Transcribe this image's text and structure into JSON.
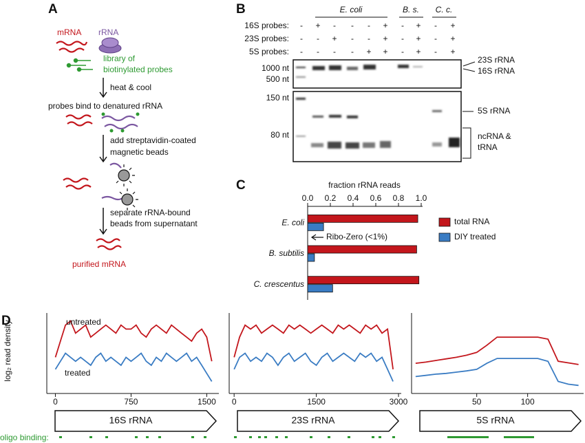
{
  "panel_labels": [
    "A",
    "B",
    "C",
    "D"
  ],
  "panel_a": {
    "mrna": "mRNA",
    "rrna": "rRNA",
    "probes": [
      "library of",
      "biotinylated probes"
    ],
    "steps": [
      "heat & cool",
      "probes bind to denatured rRNA",
      "add streptavidin-coated",
      "magnetic beads",
      "separate rRNA-bound",
      "beads from supernatant"
    ],
    "result": "purified mRNA"
  },
  "panel_b": {
    "species": [
      "E. coli",
      "B. s.",
      "C. c."
    ],
    "rows": [
      {
        "label": "16S probes:",
        "signs": [
          "-",
          "+",
          "-",
          "-",
          "-",
          "+",
          "-",
          "+",
          "-",
          "+"
        ]
      },
      {
        "label": "23S probes:",
        "signs": [
          "-",
          "-",
          "+",
          "-",
          "-",
          "+",
          "-",
          "+",
          "-",
          "+"
        ]
      },
      {
        "label": "5S probes:",
        "signs": [
          "-",
          "-",
          "-",
          "-",
          "+",
          "+",
          "-",
          "+",
          "-",
          "+"
        ]
      }
    ],
    "ladder": [
      "1000 nt",
      "500 nt",
      "150 nt",
      "80 nt"
    ],
    "bands": [
      "23S rRNA",
      "16S rRNA",
      "5S rRNA",
      "ncRNA &",
      "tRNA"
    ]
  },
  "oligo_label": "oligo binding:",
  "chart_data": [
    {
      "type": "hbar",
      "title": "fraction rRNA reads",
      "categories": [
        "E. coli",
        "B. subtilis",
        "C. crescentus"
      ],
      "series": [
        {
          "name": "total RNA",
          "color": "#c3161c",
          "values": [
            0.97,
            0.96,
            0.98
          ]
        },
        {
          "name": "DIY treated",
          "color": "#3a7cc3",
          "values": [
            0.14,
            0.06,
            0.22
          ]
        }
      ],
      "xlim": [
        0,
        1
      ],
      "xticks": [
        {
          "value": 0,
          "label": "0.0"
        },
        0.2,
        0.4,
        0.6,
        0.8,
        {
          "value": 1,
          "label": "1.0"
        }
      ],
      "annotation": "Ribo-Zero (<1%)",
      "legend": "right"
    },
    {
      "type": "line",
      "ylabel": "log₂ read density",
      "gene": "16S rRNA",
      "annotations": [
        "untreated",
        "treated"
      ],
      "x": [
        0,
        50,
        100,
        150,
        200,
        250,
        300,
        350,
        400,
        450,
        500,
        550,
        600,
        650,
        700,
        750,
        800,
        850,
        900,
        950,
        1000,
        1050,
        1100,
        1150,
        1200,
        1250,
        1300,
        1350,
        1400,
        1450,
        1500,
        1550
      ],
      "series": [
        {
          "name": "untreated",
          "color": "#c3161c",
          "values": [
            9,
            13,
            17,
            18,
            15,
            16,
            17,
            14,
            15,
            16,
            17,
            16,
            15,
            17,
            16,
            16,
            17,
            15,
            14,
            16,
            17,
            16,
            15,
            17,
            16,
            15,
            14,
            13,
            15,
            16,
            14,
            8
          ]
        },
        {
          "name": "treated",
          "color": "#3a7cc3",
          "values": [
            6,
            8,
            10,
            9,
            8,
            9,
            8,
            7,
            9,
            10,
            8,
            9,
            8,
            7,
            9,
            8,
            9,
            10,
            8,
            7,
            9,
            8,
            10,
            9,
            8,
            9,
            10,
            8,
            9,
            7,
            5,
            3
          ]
        }
      ],
      "xlim": [
        -85,
        1620
      ],
      "xticks": [
        0,
        750,
        1500
      ],
      "ylim": [
        0,
        20
      ]
    },
    {
      "type": "line",
      "gene": "23S rRNA",
      "x": [
        0,
        100,
        200,
        300,
        400,
        500,
        600,
        700,
        800,
        900,
        1000,
        1100,
        1200,
        1300,
        1400,
        1500,
        1600,
        1700,
        1800,
        1900,
        2000,
        2100,
        2200,
        2300,
        2400,
        2500,
        2600,
        2700,
        2800,
        2900
      ],
      "series": [
        {
          "name": "untreated",
          "color": "#c3161c",
          "values": [
            9,
            14,
            17,
            16,
            17,
            15,
            16,
            17,
            16,
            15,
            17,
            16,
            17,
            16,
            15,
            16,
            17,
            16,
            15,
            17,
            16,
            17,
            16,
            15,
            17,
            16,
            17,
            15,
            16,
            6
          ]
        },
        {
          "name": "treated",
          "color": "#3a7cc3",
          "values": [
            6,
            9,
            10,
            8,
            9,
            8,
            10,
            9,
            7,
            9,
            10,
            8,
            9,
            10,
            8,
            7,
            9,
            10,
            8,
            9,
            10,
            9,
            8,
            10,
            9,
            10,
            8,
            9,
            6,
            3
          ]
        }
      ],
      "xlim": [
        -90,
        3050
      ],
      "xticks": [
        0,
        1500,
        3000
      ],
      "ylim": [
        0,
        20
      ]
    },
    {
      "type": "line",
      "gene": "5S rRNA",
      "x": [
        -10,
        0,
        10,
        20,
        30,
        40,
        50,
        60,
        70,
        80,
        90,
        100,
        110,
        120,
        130,
        140,
        150
      ],
      "series": [
        {
          "name": "untreated",
          "color": "#c3161c",
          "values": [
            7.5,
            7.8,
            8.2,
            8.6,
            9,
            9.5,
            10.2,
            12,
            14,
            14,
            14,
            14,
            14,
            13.5,
            8,
            7.6,
            7.2
          ]
        },
        {
          "name": "treated",
          "color": "#3a7cc3",
          "values": [
            4.2,
            4.5,
            4.8,
            5,
            5.3,
            5.6,
            6,
            7.5,
            8.7,
            8.7,
            8.7,
            8.7,
            8.7,
            8,
            3,
            2.3,
            2
          ]
        }
      ],
      "xlim": [
        -14,
        155
      ],
      "xticks": [
        50,
        100
      ],
      "ylim": [
        0,
        20
      ]
    }
  ]
}
